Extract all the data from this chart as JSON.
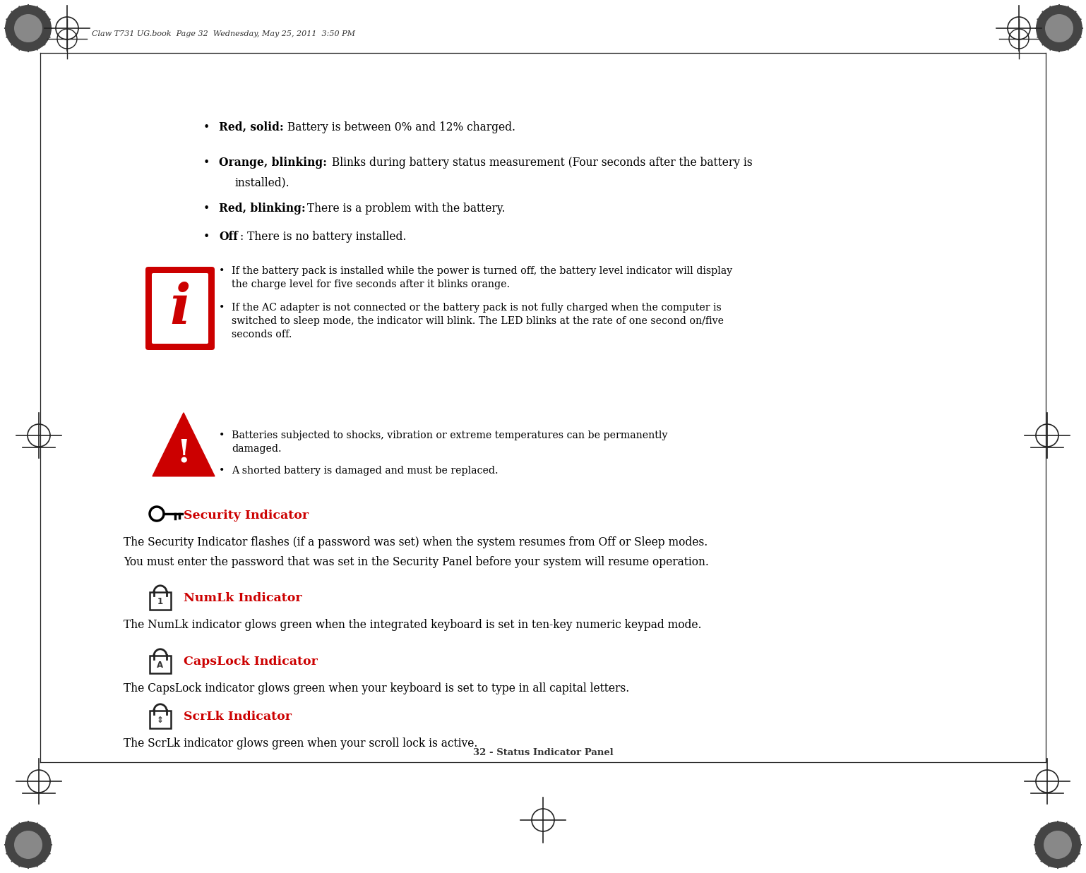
{
  "bg_color": "#ffffff",
  "text_color": "#000000",
  "red_color": "#cc0000",
  "header_text": "Claw T731 UG.book  Page 32  Wednesday, May 25, 2011  3:50 PM",
  "footer_text": "32 - Status Indicator Panel",
  "b1_bold": "Red, solid:",
  "b1_rest": " Battery is between 0% and 12% charged.",
  "b2_bold": "Orange, blinking:",
  "b2_rest": " Blinks during battery status measurement (Four seconds after the battery is",
  "b2_rest2": "installed).",
  "b3_bold": "Red, blinking:",
  "b3_rest": " There is a problem with the battery.",
  "b4_bold": "Off",
  "b4_rest": ": There is no battery installed.",
  "ib1_line1": "If the battery pack is installed while the power is turned off, the battery level indicator will display",
  "ib1_line2": "the charge level for five seconds after it blinks orange.",
  "ib2_line1": "If the AC adapter is not connected or the battery pack is not fully charged when the computer is",
  "ib2_line2": "switched to sleep mode, the indicator will blink. The LED blinks at the rate of one second on/five",
  "ib2_line3": "seconds off.",
  "wb1_line1": "Batteries subjected to shocks, vibration or extreme temperatures can be permanently",
  "wb1_line2": "damaged.",
  "wb2_line1": "A shorted battery is damaged and must be replaced.",
  "sec_heading": "Security Indicator",
  "sec_line1": "The Security Indicator flashes (if a password was set) when the system resumes from Off or Sleep modes.",
  "sec_line2": "You must enter the password that was set in the Security Panel before your system will resume operation.",
  "numlk_heading": "NumLk Indicator",
  "numlk_text": "The NumLk indicator glows green when the integrated keyboard is set in ten-key numeric keypad mode.",
  "caps_heading": "CapsLock Indicator",
  "caps_text": "The CapsLock indicator glows green when your keyboard is set to type in all capital letters.",
  "scrlk_heading": "ScrLk Indicator",
  "scrlk_text": "The ScrLk indicator glows green when your scroll lock is active."
}
